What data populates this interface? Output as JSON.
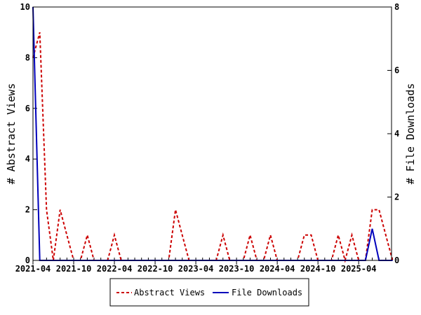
{
  "chart_data": {
    "type": "line",
    "title": "",
    "xlabel": "",
    "ylabel": "# Abstract Views",
    "y2label": "# File Downloads",
    "ylim": [
      0,
      10
    ],
    "y2lim": [
      0,
      8
    ],
    "yticks": [
      "0",
      "2",
      "4",
      "6",
      "8",
      "10"
    ],
    "y2ticks": [
      "0",
      "2",
      "4",
      "6",
      "8"
    ],
    "xtick_labels": [
      "2021-04",
      "2021-10",
      "2022-04",
      "2022-10",
      "2023-04",
      "2023-10",
      "2024-04",
      "2024-10",
      "2025-04"
    ],
    "xtick_every": 6,
    "months": 54,
    "series": [
      {
        "name": "Abstract Views",
        "axis": "left",
        "color": "#cc0000",
        "dash": true,
        "values": [
          8,
          9,
          2,
          0,
          2,
          1,
          0,
          0,
          1,
          0,
          0,
          0,
          1,
          0,
          0,
          0,
          0,
          0,
          0,
          0,
          0,
          2,
          1,
          0,
          0,
          0,
          0,
          0,
          1,
          0,
          0,
          0,
          1,
          0,
          0,
          1,
          0,
          0,
          0,
          0,
          1,
          1,
          0,
          0,
          0,
          1,
          0,
          1,
          0,
          0,
          2,
          2,
          1,
          0
        ]
      },
      {
        "name": "File Downloads",
        "axis": "right",
        "color": "#0000bb",
        "dash": false,
        "values": [
          8,
          0,
          0,
          0,
          0,
          0,
          0,
          0,
          0,
          0,
          0,
          0,
          0,
          0,
          0,
          0,
          0,
          0,
          0,
          0,
          0,
          0,
          0,
          0,
          0,
          0,
          0,
          0,
          0,
          0,
          0,
          0,
          0,
          0,
          0,
          0,
          0,
          0,
          0,
          0,
          0,
          0,
          0,
          0,
          0,
          0,
          0,
          0,
          0,
          0,
          1,
          0,
          0,
          0
        ]
      }
    ],
    "legend": "bottom-center"
  }
}
